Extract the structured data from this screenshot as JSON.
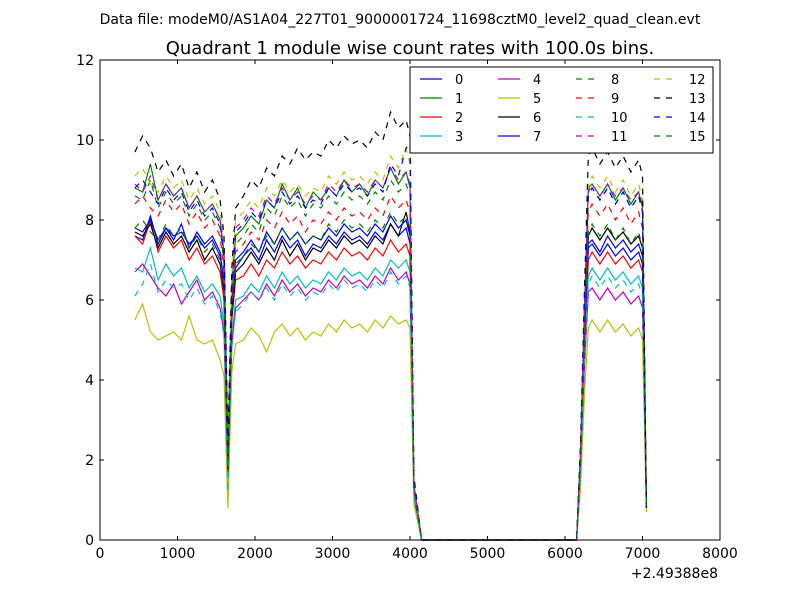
{
  "header": {
    "suptitle": "Data file: modeM0/AS1A04_227T01_9000001724_11698cztM0_level2_quad_clean.evt"
  },
  "chart_data": {
    "type": "line",
    "title": "Quadrant 1 module wise count rates with 100.0s bins.",
    "xlabel": "",
    "ylabel": "",
    "x_offset_label": "+2.49388e8",
    "xlim": [
      0,
      8000
    ],
    "ylim": [
      0,
      12
    ],
    "x_ticks": [
      0,
      1000,
      2000,
      3000,
      4000,
      5000,
      6000,
      7000,
      8000
    ],
    "y_ticks": [
      0,
      2,
      4,
      6,
      8,
      10,
      12
    ],
    "grid": false,
    "legend_position": "top-right",
    "legend_columns": 4,
    "x": [
      450,
      550,
      650,
      750,
      850,
      950,
      1050,
      1150,
      1250,
      1350,
      1450,
      1550,
      1600,
      1650,
      1700,
      1750,
      1850,
      1950,
      2050,
      2150,
      2250,
      2350,
      2450,
      2550,
      2650,
      2750,
      2850,
      2950,
      3050,
      3150,
      3250,
      3350,
      3450,
      3550,
      3650,
      3750,
      3850,
      3950,
      4000,
      4050,
      4150,
      4250,
      4500,
      5000,
      5500,
      6000,
      6150,
      6200,
      6250,
      6300,
      6350,
      6450,
      6550,
      6650,
      6750,
      6850,
      6950,
      7000,
      7050
    ],
    "series": [
      {
        "name": "0",
        "color": "#0000ff",
        "dash": "solid",
        "values": [
          7.6,
          7.5,
          8.1,
          7.4,
          7.8,
          7.5,
          7.9,
          7.3,
          7.7,
          7.4,
          7.6,
          7.2,
          6.4,
          2.0,
          5.8,
          6.8,
          7.1,
          7.3,
          7.0,
          7.5,
          7.2,
          7.6,
          7.3,
          7.5,
          7.1,
          7.4,
          7.3,
          7.6,
          7.4,
          7.7,
          7.5,
          7.6,
          7.4,
          7.7,
          7.5,
          7.9,
          7.6,
          7.8,
          7.4,
          1.3,
          0,
          0,
          0,
          0,
          0,
          0,
          0,
          2.0,
          5.0,
          7.4,
          7.5,
          7.2,
          7.6,
          7.3,
          7.5,
          7.2,
          7.4,
          7.1,
          0.8
        ]
      },
      {
        "name": "1",
        "color": "#008000",
        "dash": "solid",
        "values": [
          8.8,
          8.7,
          9.4,
          8.5,
          8.9,
          8.6,
          8.8,
          8.3,
          8.6,
          8.2,
          8.4,
          8.0,
          7.1,
          2.1,
          6.3,
          7.6,
          7.8,
          8.1,
          7.9,
          8.5,
          8.3,
          8.9,
          8.5,
          8.8,
          8.3,
          8.7,
          8.5,
          8.8,
          8.6,
          9.0,
          8.7,
          8.9,
          8.6,
          9.0,
          8.8,
          9.3,
          8.9,
          9.2,
          8.8,
          1.4,
          0,
          0,
          0,
          0,
          0,
          0,
          0,
          2.1,
          5.7,
          8.8,
          8.9,
          8.6,
          8.9,
          8.5,
          8.8,
          8.4,
          8.7,
          8.3,
          0.8
        ]
      },
      {
        "name": "2",
        "color": "#ff0000",
        "dash": "solid",
        "values": [
          7.6,
          7.4,
          8.0,
          7.2,
          7.6,
          7.3,
          7.5,
          7.0,
          7.3,
          6.9,
          7.1,
          6.7,
          6.0,
          1.8,
          5.5,
          6.5,
          6.6,
          6.9,
          6.6,
          7.0,
          6.8,
          7.2,
          6.9,
          7.1,
          6.8,
          7.0,
          6.9,
          7.2,
          7.0,
          7.3,
          7.1,
          7.2,
          7.0,
          7.3,
          7.1,
          7.5,
          7.2,
          7.4,
          7.1,
          1.2,
          0,
          0,
          0,
          0,
          0,
          0,
          0,
          1.9,
          4.8,
          7.0,
          7.2,
          6.9,
          7.2,
          6.9,
          7.1,
          6.8,
          7.0,
          6.7,
          0.8
        ]
      },
      {
        "name": "3",
        "color": "#00bfbf",
        "dash": "solid",
        "values": [
          6.8,
          6.7,
          7.3,
          6.5,
          6.9,
          6.6,
          6.8,
          6.3,
          6.6,
          6.2,
          6.4,
          6.1,
          5.4,
          1.0,
          5.0,
          6.0,
          6.1,
          6.4,
          6.2,
          6.6,
          6.3,
          6.7,
          6.4,
          6.6,
          6.3,
          6.5,
          6.4,
          6.7,
          6.5,
          6.8,
          6.6,
          6.7,
          6.5,
          6.8,
          6.6,
          7.0,
          6.8,
          7.0,
          6.7,
          1.1,
          0,
          0,
          0,
          0,
          0,
          0,
          0,
          1.7,
          4.5,
          6.6,
          6.8,
          6.5,
          6.8,
          6.5,
          6.7,
          6.4,
          6.6,
          6.3,
          0.8
        ]
      },
      {
        "name": "4",
        "color": "#bf00bf",
        "dash": "solid",
        "values": [
          6.7,
          6.9,
          6.6,
          6.3,
          6.1,
          6.4,
          5.9,
          6.2,
          6.5,
          6.0,
          6.2,
          5.8,
          5.2,
          1.9,
          4.9,
          5.8,
          6.0,
          6.2,
          6.0,
          6.4,
          6.1,
          6.5,
          6.2,
          6.4,
          6.1,
          6.3,
          6.2,
          6.5,
          6.3,
          6.6,
          6.4,
          6.5,
          6.3,
          6.6,
          6.4,
          6.8,
          6.5,
          6.7,
          6.4,
          1.1,
          0,
          0,
          0,
          0,
          0,
          0,
          0,
          1.6,
          4.3,
          6.2,
          6.3,
          6.0,
          6.3,
          6.0,
          6.2,
          5.9,
          6.1,
          5.8,
          0.8
        ]
      },
      {
        "name": "5",
        "color": "#bfbf00",
        "dash": "solid",
        "values": [
          5.5,
          5.9,
          5.2,
          5.0,
          5.1,
          5.2,
          5.0,
          5.6,
          5.0,
          4.9,
          5.0,
          4.5,
          4.1,
          0.8,
          4.2,
          4.9,
          5.0,
          5.3,
          5.1,
          4.7,
          5.2,
          5.4,
          5.1,
          5.3,
          5.0,
          5.2,
          5.1,
          5.4,
          5.2,
          5.5,
          5.3,
          5.4,
          5.2,
          5.5,
          5.3,
          5.6,
          5.4,
          5.5,
          5.3,
          0.9,
          0,
          0,
          0,
          0,
          0,
          0,
          0,
          1.3,
          3.6,
          5.3,
          5.5,
          5.2,
          5.5,
          5.2,
          5.4,
          5.1,
          5.3,
          5.0,
          0.7
        ]
      },
      {
        "name": "6",
        "color": "#000000",
        "dash": "solid",
        "values": [
          7.7,
          7.6,
          7.9,
          7.3,
          7.7,
          7.4,
          7.6,
          7.2,
          7.5,
          7.0,
          7.3,
          6.9,
          6.2,
          1.7,
          5.6,
          6.7,
          6.9,
          7.2,
          6.9,
          7.3,
          7.0,
          7.5,
          7.1,
          7.4,
          7.0,
          7.3,
          7.2,
          7.5,
          7.3,
          7.6,
          7.4,
          7.5,
          7.3,
          7.6,
          7.4,
          7.9,
          7.6,
          8.2,
          7.7,
          1.3,
          0,
          0,
          0,
          0,
          0,
          0,
          0,
          2.0,
          5.1,
          7.6,
          7.8,
          7.5,
          7.8,
          7.5,
          7.7,
          7.4,
          7.6,
          7.3,
          0.8
        ]
      },
      {
        "name": "7",
        "color": "#0000ff",
        "dash": "solid",
        "values": [
          7.8,
          7.7,
          8.0,
          7.5,
          7.8,
          7.6,
          7.7,
          7.4,
          7.6,
          7.3,
          7.5,
          7.1,
          6.5,
          2.3,
          5.9,
          7.0,
          7.2,
          7.5,
          7.2,
          7.7,
          7.4,
          7.8,
          7.5,
          7.7,
          7.4,
          7.6,
          7.5,
          7.8,
          7.6,
          7.9,
          7.7,
          7.8,
          7.6,
          7.9,
          7.7,
          8.1,
          7.8,
          8.0,
          7.6,
          1.3,
          0,
          0,
          0,
          0,
          0,
          0,
          0,
          1.9,
          5.0,
          7.3,
          7.4,
          7.1,
          7.4,
          7.1,
          7.3,
          7.0,
          7.2,
          6.9,
          0.8
        ]
      },
      {
        "name": "8",
        "color": "#008000",
        "dash": "dashed",
        "values": [
          8.6,
          8.5,
          9.0,
          8.3,
          8.7,
          8.4,
          8.6,
          8.1,
          8.4,
          8.0,
          8.2,
          7.8,
          6.9,
          2.0,
          6.2,
          7.4,
          7.6,
          7.9,
          7.7,
          8.3,
          8.1,
          8.6,
          8.3,
          8.5,
          8.1,
          8.4,
          8.3,
          8.6,
          8.4,
          8.7,
          8.5,
          8.6,
          8.4,
          8.7,
          8.5,
          9.0,
          8.7,
          8.9,
          8.6,
          1.4,
          0,
          0,
          0,
          0,
          0,
          0,
          0,
          2.1,
          5.6,
          8.6,
          8.8,
          8.5,
          8.8,
          8.4,
          8.7,
          8.3,
          8.6,
          8.2,
          0.9
        ]
      },
      {
        "name": "9",
        "color": "#ff0000",
        "dash": "dashed",
        "values": [
          8.4,
          8.6,
          8.3,
          8.1,
          8.5,
          8.2,
          8.4,
          7.9,
          8.2,
          7.8,
          8.0,
          7.6,
          6.7,
          1.9,
          6.0,
          7.2,
          7.4,
          7.7,
          7.5,
          8.0,
          7.8,
          8.2,
          7.9,
          8.1,
          7.7,
          8.0,
          7.9,
          8.2,
          8.0,
          8.3,
          8.1,
          8.2,
          8.0,
          8.3,
          8.1,
          8.6,
          8.3,
          8.5,
          8.2,
          1.3,
          0,
          0,
          0,
          0,
          0,
          0,
          0,
          2.0,
          5.4,
          8.2,
          8.4,
          8.1,
          8.4,
          8.0,
          8.3,
          7.9,
          8.2,
          7.8,
          0.8
        ]
      },
      {
        "name": "10",
        "color": "#00bfbf",
        "dash": "dashed",
        "values": [
          6.1,
          6.4,
          6.9,
          6.2,
          6.5,
          6.3,
          6.4,
          6.0,
          6.3,
          5.9,
          6.1,
          5.7,
          5.1,
          1.2,
          4.8,
          5.7,
          5.9,
          6.2,
          6.0,
          6.3,
          6.0,
          6.4,
          6.1,
          6.3,
          6.0,
          6.2,
          6.1,
          6.4,
          6.2,
          6.5,
          6.3,
          6.4,
          6.2,
          6.5,
          6.3,
          6.7,
          6.4,
          6.6,
          6.3,
          1.1,
          0,
          0,
          0,
          0,
          0,
          0,
          0,
          1.6,
          4.4,
          6.4,
          6.6,
          6.3,
          6.6,
          6.3,
          6.5,
          6.2,
          6.4,
          6.1,
          0.8
        ]
      },
      {
        "name": "11",
        "color": "#bf00bf",
        "dash": "dashed",
        "values": [
          8.9,
          8.7,
          9.1,
          8.5,
          8.9,
          8.6,
          8.8,
          8.3,
          8.6,
          8.2,
          8.4,
          8.0,
          7.2,
          2.2,
          6.4,
          7.8,
          8.0,
          8.3,
          8.1,
          8.6,
          8.4,
          8.8,
          8.5,
          8.7,
          8.4,
          8.6,
          8.5,
          8.9,
          8.7,
          9.0,
          8.8,
          8.9,
          8.7,
          9.0,
          8.8,
          9.3,
          9.0,
          9.2,
          8.9,
          1.4,
          0,
          0,
          0,
          0,
          0,
          0,
          0,
          2.2,
          5.8,
          8.7,
          8.9,
          8.6,
          8.9,
          8.6,
          8.8,
          8.5,
          8.7,
          8.4,
          0.9
        ]
      },
      {
        "name": "12",
        "color": "#bfbf00",
        "dash": "dashed",
        "values": [
          9.1,
          9.3,
          8.9,
          8.7,
          9.1,
          8.8,
          9.0,
          8.5,
          8.8,
          8.4,
          8.6,
          8.2,
          7.4,
          2.3,
          6.6,
          8.0,
          8.2,
          8.5,
          8.3,
          8.8,
          8.6,
          9.0,
          8.7,
          8.9,
          8.6,
          8.8,
          8.7,
          9.1,
          8.9,
          9.2,
          9.0,
          9.1,
          8.9,
          9.2,
          9.0,
          9.6,
          9.3,
          9.8,
          9.4,
          1.5,
          0,
          0,
          0,
          0,
          0,
          0,
          0,
          2.3,
          5.9,
          8.9,
          9.1,
          8.8,
          9.1,
          8.7,
          9.0,
          8.6,
          8.9,
          8.5,
          0.9
        ]
      },
      {
        "name": "13",
        "color": "#000000",
        "dash": "dashed",
        "values": [
          9.7,
          10.1,
          9.8,
          9.2,
          9.5,
          9.1,
          9.4,
          8.8,
          9.2,
          8.7,
          9.0,
          8.5,
          7.6,
          2.4,
          6.8,
          8.3,
          8.6,
          9.0,
          8.8,
          9.3,
          9.1,
          9.6,
          9.4,
          9.8,
          9.5,
          9.7,
          9.6,
          10.0,
          9.8,
          10.1,
          9.9,
          10.0,
          9.8,
          10.2,
          10.0,
          10.7,
          10.3,
          10.5,
          10.1,
          1.6,
          0,
          0,
          0,
          0,
          0,
          0,
          0,
          2.4,
          6.2,
          9.6,
          9.8,
          9.4,
          9.7,
          9.3,
          9.6,
          9.2,
          9.5,
          9.1,
          0.9
        ]
      },
      {
        "name": "14",
        "color": "#0000ff",
        "dash": "dashed",
        "values": [
          8.8,
          9.0,
          8.7,
          8.4,
          8.8,
          8.5,
          8.7,
          8.2,
          8.5,
          8.1,
          8.3,
          7.9,
          7.1,
          2.1,
          6.3,
          7.7,
          7.9,
          8.2,
          8.0,
          8.5,
          8.3,
          8.7,
          8.4,
          8.6,
          8.3,
          8.5,
          8.4,
          8.8,
          8.6,
          8.9,
          8.7,
          8.8,
          8.6,
          8.9,
          8.7,
          9.4,
          9.1,
          9.8,
          9.9,
          1.5,
          0,
          0,
          0,
          0,
          0,
          0,
          0,
          2.1,
          5.7,
          8.6,
          8.8,
          8.5,
          8.8,
          8.4,
          8.7,
          8.3,
          8.6,
          8.2,
          0.9
        ]
      },
      {
        "name": "15",
        "color": "#008000",
        "dash": "dashed",
        "values": [
          7.8,
          8.0,
          7.7,
          7.5,
          7.9,
          7.6,
          7.8,
          7.3,
          7.6,
          7.2,
          7.4,
          7.0,
          6.3,
          1.8,
          5.7,
          6.9,
          7.1,
          7.4,
          7.2,
          7.6,
          7.4,
          7.8,
          7.5,
          7.7,
          7.4,
          7.6,
          7.5,
          7.9,
          7.7,
          8.0,
          7.8,
          7.9,
          7.7,
          8.0,
          7.8,
          8.2,
          7.9,
          8.1,
          7.8,
          1.3,
          0,
          0,
          0,
          0,
          0,
          0,
          0,
          1.9,
          5.1,
          7.7,
          7.9,
          7.6,
          7.9,
          7.5,
          7.8,
          7.4,
          7.7,
          7.3,
          0.8
        ]
      }
    ]
  }
}
